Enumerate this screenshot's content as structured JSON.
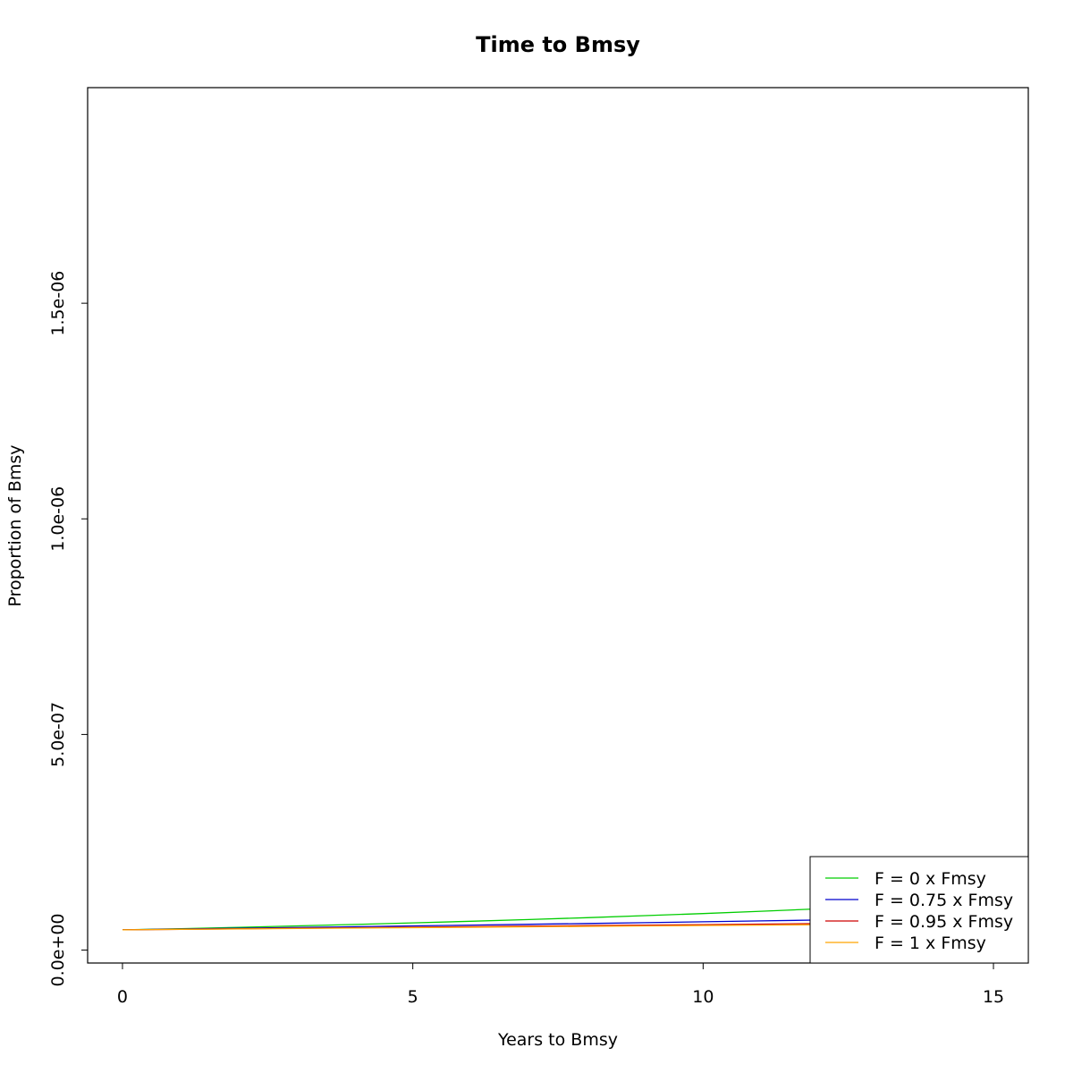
{
  "chart_data": {
    "type": "line",
    "title": "Time to Bmsy",
    "xlabel": "Years to Bmsy",
    "ylabel": "Proportion of Bmsy",
    "xlim": [
      -0.6,
      15.6
    ],
    "ylim": [
      -3e-08,
      2e-06
    ],
    "x_ticks": [
      0,
      5,
      10,
      15
    ],
    "x_tick_labels": [
      "0",
      "5",
      "10",
      "15"
    ],
    "y_ticks": [
      0,
      5e-07,
      1e-06,
      1.5e-06
    ],
    "y_tick_labels": [
      "0.0e+00",
      "5.0e-07",
      "1.0e-06",
      "1.5e-06"
    ],
    "grid": false,
    "legend_position": "bottom-right",
    "x": [
      0,
      1,
      2,
      3,
      4,
      5,
      6,
      7,
      8,
      9,
      10,
      11,
      12,
      13,
      14,
      15,
      16
    ],
    "series": [
      {
        "name": "F = 0 x Fmsy",
        "color": "#00cd00",
        "values": [
          4.7e-08,
          4.97e-08,
          5.28e-08,
          5.6e-08,
          5.94e-08,
          6.3e-08,
          6.68e-08,
          7.08e-08,
          7.52e-08,
          7.98e-08,
          8.47e-08,
          9e-08,
          9.56e-08,
          1.015e-07,
          1.078e-07,
          1.145e-07,
          1.215e-07
        ]
      },
      {
        "name": "F = 0.75 x Fmsy",
        "color": "#0000cd",
        "values": [
          4.7e-08,
          4.88e-08,
          5.06e-08,
          5.24e-08,
          5.42e-08,
          5.6e-08,
          5.79e-08,
          5.98e-08,
          6.17e-08,
          6.36e-08,
          6.56e-08,
          6.77e-08,
          6.98e-08,
          7.2e-08,
          7.42e-08,
          7.65e-08,
          7.88e-08
        ]
      },
      {
        "name": "F = 0.95 x Fmsy",
        "color": "#cd0000",
        "values": [
          4.7e-08,
          4.82e-08,
          4.94e-08,
          5.06e-08,
          5.18e-08,
          5.3e-08,
          5.42e-08,
          5.54e-08,
          5.66e-08,
          5.78e-08,
          5.9e-08,
          6.02e-08,
          6.14e-08,
          6.26e-08,
          6.38e-08,
          6.5e-08,
          6.62e-08
        ]
      },
      {
        "name": "F = 1 x Fmsy",
        "color": "#ffa500",
        "values": [
          4.7e-08,
          4.8e-08,
          4.9e-08,
          5e-08,
          5.1e-08,
          5.2e-08,
          5.3e-08,
          5.4e-08,
          5.5e-08,
          5.6e-08,
          5.7e-08,
          5.8e-08,
          5.9e-08,
          6e-08,
          6.1e-08,
          6.2e-08,
          6.3e-08
        ]
      }
    ]
  }
}
